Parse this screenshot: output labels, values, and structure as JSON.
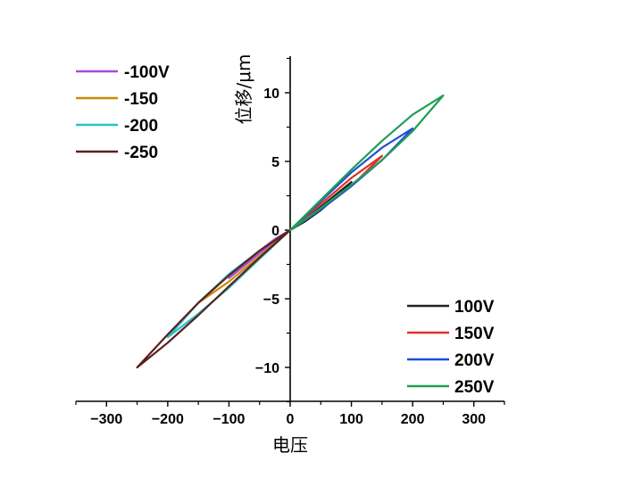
{
  "chart_data": {
    "type": "line",
    "title": "",
    "xlabel": "电压",
    "ylabel": "位移/μm",
    "xlim": [
      -350,
      350
    ],
    "ylim": [
      -12.5,
      12.5
    ],
    "xticks": [
      -300,
      -200,
      -100,
      0,
      100,
      200,
      300
    ],
    "xtick_labels": [
      "−300",
      "−200",
      "−100",
      "0",
      "100",
      "200",
      "300"
    ],
    "yticks": [
      -10,
      -5,
      0,
      5,
      10
    ],
    "ytick_labels": [
      "−10",
      "−5",
      "0",
      "5",
      "10"
    ],
    "grid": false,
    "legends": [
      {
        "placement": "top-left",
        "entries": [
          "-100V",
          "-150",
          "-200",
          "-250"
        ]
      },
      {
        "placement": "bottom-right",
        "entries": [
          "100V",
          "150V",
          "200V",
          "250V"
        ]
      }
    ],
    "series": [
      {
        "name": "-100V",
        "color": "#a64dd6",
        "up": [
          [
            0,
            0
          ],
          [
            -25,
            -0.8
          ],
          [
            -50,
            -1.7
          ],
          [
            -75,
            -2.6
          ],
          [
            -100,
            -3.5
          ]
        ],
        "down": [
          [
            -100,
            -3.5
          ],
          [
            -75,
            -2.45
          ],
          [
            -50,
            -1.5
          ],
          [
            -25,
            -0.65
          ],
          [
            0,
            0
          ]
        ]
      },
      {
        "name": "-150",
        "color": "#c98a00",
        "up": [
          [
            0,
            0
          ],
          [
            -50,
            -1.9
          ],
          [
            -100,
            -3.75
          ],
          [
            -150,
            -5.3
          ]
        ],
        "down": [
          [
            -150,
            -5.3
          ],
          [
            -100,
            -3.3
          ],
          [
            -50,
            -1.5
          ],
          [
            0,
            0
          ]
        ]
      },
      {
        "name": "-200",
        "color": "#22c4c8",
        "up": [
          [
            0,
            0
          ],
          [
            -50,
            -2.1
          ],
          [
            -100,
            -4.2
          ],
          [
            -150,
            -6.1
          ],
          [
            -200,
            -7.8
          ]
        ],
        "down": [
          [
            -200,
            -7.8
          ],
          [
            -150,
            -5.3
          ],
          [
            -100,
            -3.2
          ],
          [
            -50,
            -1.5
          ],
          [
            0,
            0
          ]
        ]
      },
      {
        "name": "-250",
        "color": "#5c1f1f",
        "up": [
          [
            0,
            0
          ],
          [
            -50,
            -2.0
          ],
          [
            -100,
            -4.1
          ],
          [
            -150,
            -6.2
          ],
          [
            -200,
            -8.2
          ],
          [
            -250,
            -10.0
          ]
        ],
        "down": [
          [
            -250,
            -10.0
          ],
          [
            -200,
            -7.6
          ],
          [
            -150,
            -5.3
          ],
          [
            -100,
            -3.3
          ],
          [
            -50,
            -1.5
          ],
          [
            0,
            0
          ]
        ]
      },
      {
        "name": "100V",
        "color": "#222222",
        "up": [
          [
            0,
            0
          ],
          [
            25,
            0.8
          ],
          [
            50,
            1.7
          ],
          [
            75,
            2.6
          ],
          [
            100,
            3.5
          ]
        ],
        "down": [
          [
            100,
            3.5
          ],
          [
            75,
            2.4
          ],
          [
            50,
            1.45
          ],
          [
            25,
            0.65
          ],
          [
            0,
            0
          ]
        ]
      },
      {
        "name": "150V",
        "color": "#e0302a",
        "up": [
          [
            0,
            0
          ],
          [
            50,
            1.9
          ],
          [
            100,
            3.8
          ],
          [
            150,
            5.4
          ]
        ],
        "down": [
          [
            150,
            5.4
          ],
          [
            100,
            3.2
          ],
          [
            50,
            1.5
          ],
          [
            0,
            0
          ]
        ]
      },
      {
        "name": "200V",
        "color": "#1c4fd8",
        "up": [
          [
            0,
            0
          ],
          [
            50,
            2.1
          ],
          [
            100,
            4.2
          ],
          [
            150,
            6.0
          ],
          [
            200,
            7.4
          ]
        ],
        "down": [
          [
            200,
            7.4
          ],
          [
            150,
            5.1
          ],
          [
            100,
            3.2
          ],
          [
            50,
            1.5
          ],
          [
            0,
            0
          ]
        ]
      },
      {
        "name": "250V",
        "color": "#1f9e55",
        "up": [
          [
            0,
            0
          ],
          [
            50,
            2.2
          ],
          [
            100,
            4.4
          ],
          [
            150,
            6.5
          ],
          [
            200,
            8.4
          ],
          [
            250,
            9.8
          ]
        ],
        "down": [
          [
            250,
            9.8
          ],
          [
            200,
            7.2
          ],
          [
            150,
            5.1
          ],
          [
            100,
            3.3
          ],
          [
            50,
            1.6
          ],
          [
            0,
            0
          ]
        ]
      }
    ]
  }
}
